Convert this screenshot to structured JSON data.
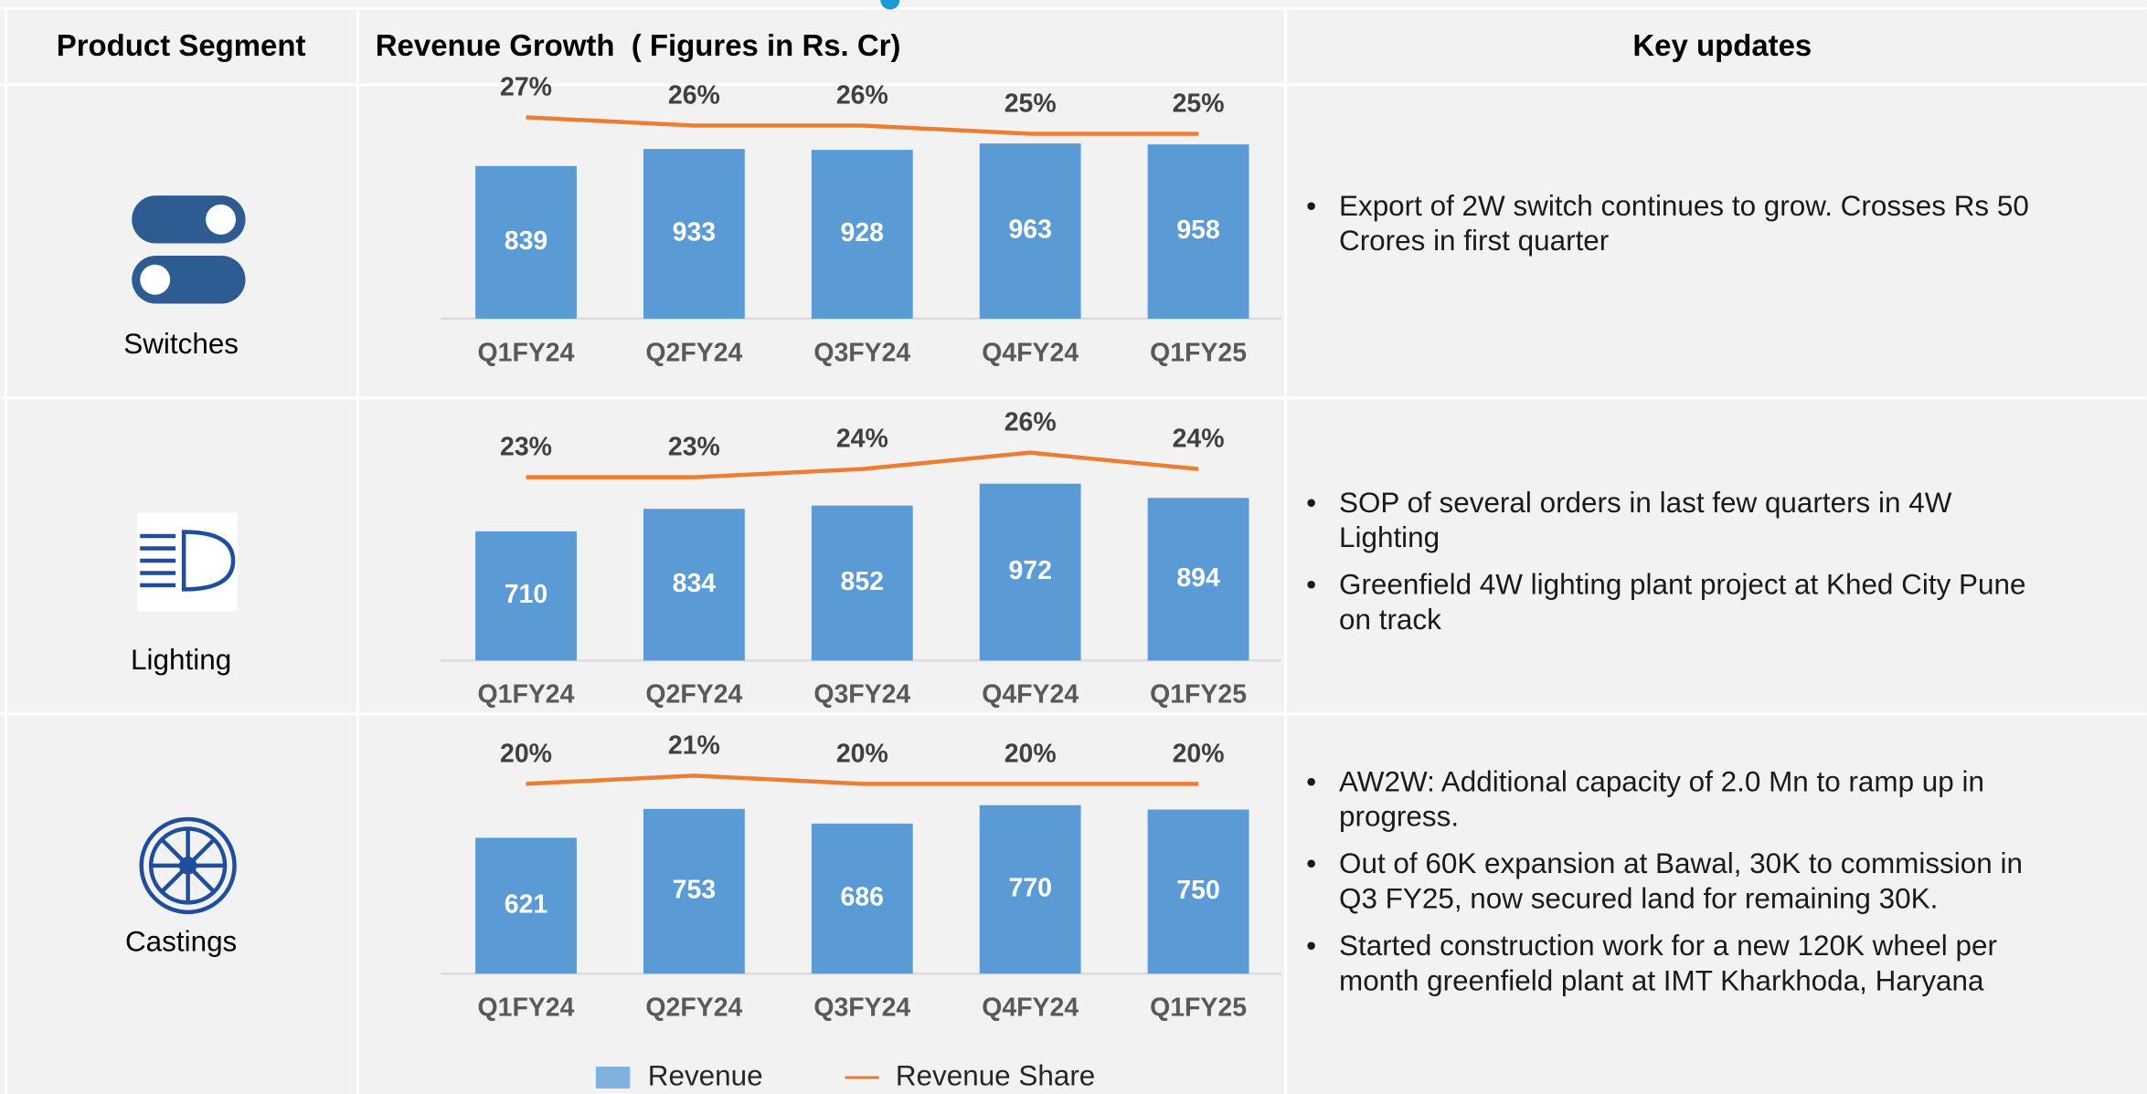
{
  "header": {
    "segment": "Product Segment",
    "revenue": "Revenue Growth  ( Figures in Rs. Cr)",
    "updates": "Key updates"
  },
  "segments": [
    {
      "name": "Switches",
      "updates": [
        [
          "Export of 2W switch continues to grow. Crosses Rs 50",
          "Crores in first quarter"
        ]
      ]
    },
    {
      "name": "Lighting",
      "updates": [
        [
          "SOP of several orders in last few quarters in 4W",
          "Lighting"
        ],
        [
          "Greenfield 4W lighting plant project at Khed City Pune",
          "on track"
        ]
      ]
    },
    {
      "name": "Castings",
      "updates": [
        [
          "AW2W: Additional capacity of 2.0 Mn to ramp up in",
          "progress."
        ],
        [
          "Out of 60K expansion at Bawal, 30K to commission in",
          "Q3 FY25, now secured land for remaining 30K."
        ],
        [
          "Started construction work for  a new 120K wheel per",
          "month greenfield plant at IMT Kharkhoda, Haryana"
        ]
      ]
    }
  ],
  "chart_data": [
    {
      "type": "bar",
      "categories": [
        "Q1FY24",
        "Q2FY24",
        "Q3FY24",
        "Q4FY24",
        "Q1FY25"
      ],
      "series": [
        {
          "name": "Revenue",
          "type": "bar",
          "color": "#5b9bd5",
          "values": [
            839,
            933,
            928,
            963,
            958
          ]
        },
        {
          "name": "Revenue Share",
          "type": "line",
          "color": "#ed7d31",
          "values": [
            27,
            26,
            26,
            25,
            25
          ],
          "value_labels": [
            "27%",
            "26%",
            "26%",
            "25%",
            "25%"
          ]
        }
      ]
    },
    {
      "type": "bar",
      "categories": [
        "Q1FY24",
        "Q2FY24",
        "Q3FY24",
        "Q4FY24",
        "Q1FY25"
      ],
      "series": [
        {
          "name": "Revenue",
          "type": "bar",
          "color": "#5b9bd5",
          "values": [
            710,
            834,
            852,
            972,
            894
          ]
        },
        {
          "name": "Revenue Share",
          "type": "line",
          "color": "#ed7d31",
          "values": [
            23,
            23,
            24,
            26,
            24
          ],
          "value_labels": [
            "23%",
            "23%",
            "24%",
            "26%",
            "24%"
          ]
        }
      ]
    },
    {
      "type": "bar",
      "categories": [
        "Q1FY24",
        "Q2FY24",
        "Q3FY24",
        "Q4FY24",
        "Q1FY25"
      ],
      "series": [
        {
          "name": "Revenue",
          "type": "bar",
          "color": "#5b9bd5",
          "values": [
            621,
            753,
            686,
            770,
            750
          ]
        },
        {
          "name": "Revenue Share",
          "type": "line",
          "color": "#ed7d31",
          "values": [
            20,
            21,
            20,
            20,
            20
          ],
          "value_labels": [
            "20%",
            "21%",
            "20%",
            "20%",
            "20%"
          ]
        }
      ]
    }
  ]
}
